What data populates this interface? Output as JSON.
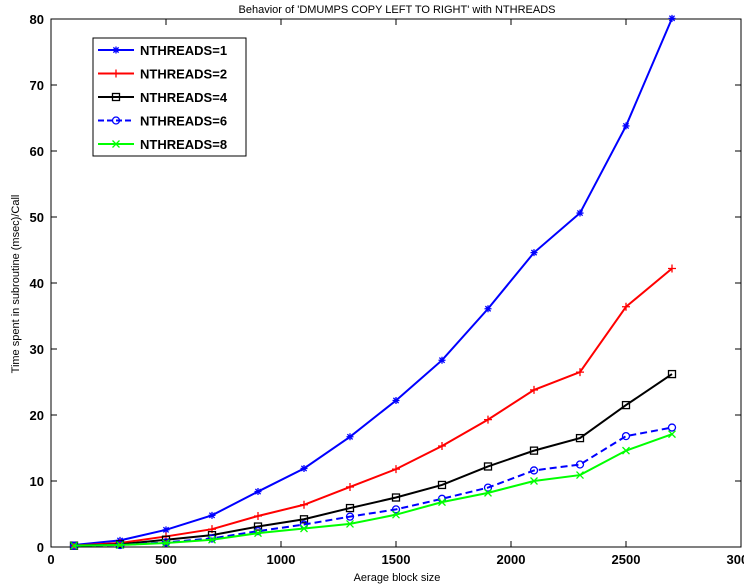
{
  "chart_data": {
    "type": "line",
    "title": "Behavior of 'DMUMPS COPY LEFT TO RIGHT' with NTHREADS",
    "xlabel": "Aerage block size",
    "ylabel": "Time spent in subroutine (msec)/Call",
    "xlim": [
      0,
      3000
    ],
    "ylim": [
      0,
      80
    ],
    "xticks": [
      0,
      500,
      1000,
      1500,
      2000,
      2500,
      3000
    ],
    "yticks": [
      0,
      10,
      20,
      30,
      40,
      50,
      60,
      70,
      80
    ],
    "x": [
      100,
      300,
      500,
      700,
      900,
      1100,
      1300,
      1500,
      1700,
      1900,
      2100,
      2300,
      2500,
      2700
    ],
    "grid": false,
    "legend_position": "top-left",
    "series": [
      {
        "name": "NTHREADS=1",
        "color": "#0000ff",
        "marker": "star",
        "dash": "solid",
        "values": [
          0.3,
          1.0,
          2.6,
          4.8,
          8.4,
          11.9,
          16.7,
          22.2,
          28.3,
          36.1,
          44.6,
          50.6,
          63.8,
          80.1
        ]
      },
      {
        "name": "NTHREADS=2",
        "color": "#ff0000",
        "marker": "plus",
        "dash": "solid",
        "values": [
          0.2,
          0.6,
          1.6,
          2.7,
          4.7,
          6.4,
          9.1,
          11.8,
          15.3,
          19.3,
          23.8,
          26.5,
          36.4,
          42.2
        ]
      },
      {
        "name": "NTHREADS=4",
        "color": "#000000",
        "marker": "square",
        "dash": "solid",
        "values": [
          0.2,
          0.4,
          1.1,
          1.8,
          3.1,
          4.2,
          5.9,
          7.5,
          9.4,
          12.2,
          14.6,
          16.5,
          21.5,
          26.2
        ]
      },
      {
        "name": "NTHREADS=6",
        "color": "#0000ff",
        "marker": "circle",
        "dash": "dashed",
        "values": [
          0.2,
          0.3,
          0.7,
          1.3,
          2.4,
          3.4,
          4.6,
          5.7,
          7.3,
          9.0,
          11.6,
          12.5,
          16.8,
          18.1
        ]
      },
      {
        "name": "NTHREADS=8",
        "color": "#00ff00",
        "marker": "x",
        "dash": "solid",
        "values": [
          0.2,
          0.3,
          0.6,
          1.1,
          2.1,
          2.8,
          3.5,
          4.9,
          6.8,
          8.2,
          10.0,
          10.9,
          14.6,
          17.1
        ]
      }
    ]
  }
}
